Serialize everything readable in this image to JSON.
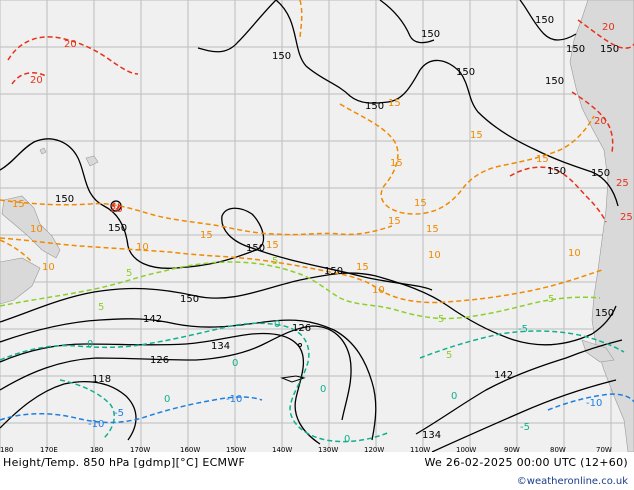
{
  "footer": {
    "title": "Height/Temp. 850 hPa [gdmp][°C] ECMWF",
    "datetime": "We 26-02-2025 00:00 UTC (12+60)",
    "credit": "©weatheronline.co.uk"
  },
  "longitude_labels": [
    "180",
    "170E",
    "180",
    "170W",
    "160W",
    "150W",
    "140W",
    "130W",
    "120W",
    "110W",
    "100W",
    "90W",
    "80W",
    "70W"
  ],
  "height_labels": [
    "150",
    "150",
    "150",
    "150",
    "150",
    "150",
    "150",
    "150",
    "150",
    "150",
    "150",
    "150",
    "150",
    "150",
    "150",
    "150",
    "142",
    "134",
    "126",
    "126",
    "118",
    "142",
    "134"
  ],
  "temp_labels_orange": [
    "15",
    "15",
    "15",
    "15",
    "15",
    "15",
    "15",
    "15",
    "15",
    "15",
    "15",
    "10",
    "10",
    "10",
    "10",
    "10",
    "10"
  ],
  "temp_labels_red": [
    "20",
    "20",
    "20",
    "20",
    "25",
    "20",
    "25"
  ],
  "temp_labels_green": [
    "5",
    "5",
    "5",
    "5",
    "5",
    "5"
  ],
  "temp_labels_teal": [
    "0",
    "0",
    "0",
    "0",
    "0",
    "-5",
    "-5",
    "0",
    "0"
  ],
  "temp_labels_blue": [
    "-10",
    "-10",
    "-10",
    "-5"
  ],
  "colors": {
    "background": "#f0f0f0",
    "land": "#d9d9d9",
    "height_contour": "#000000",
    "temp_25": "#e8301a",
    "temp_15": "#f08a00",
    "temp_5": "#8ccf2a",
    "temp_0": "#10b08c",
    "temp_minus10": "#1e7fe0"
  }
}
